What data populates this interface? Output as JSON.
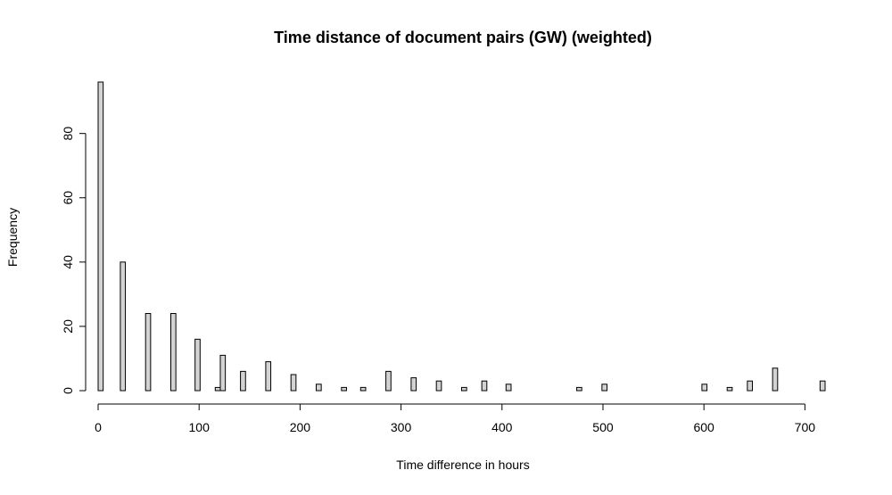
{
  "chart_data": {
    "type": "bar",
    "title": "Time distance of document pairs (GW) (weighted)",
    "xlabel": "Time difference in hours",
    "ylabel": "Frequency",
    "xlim": [
      0,
      720
    ],
    "ylim": [
      0,
      96
    ],
    "x_ticks": [
      0,
      100,
      200,
      300,
      400,
      500,
      600,
      700
    ],
    "y_ticks": [
      0,
      20,
      40,
      60,
      80
    ],
    "grid": false,
    "bin_width": 5,
    "bins": [
      {
        "x": 0,
        "value": 96
      },
      {
        "x": 22,
        "value": 40
      },
      {
        "x": 47,
        "value": 24
      },
      {
        "x": 72,
        "value": 24
      },
      {
        "x": 96,
        "value": 16
      },
      {
        "x": 116,
        "value": 1
      },
      {
        "x": 121,
        "value": 11
      },
      {
        "x": 141,
        "value": 6
      },
      {
        "x": 166,
        "value": 9
      },
      {
        "x": 191,
        "value": 5
      },
      {
        "x": 216,
        "value": 2
      },
      {
        "x": 241,
        "value": 1
      },
      {
        "x": 260,
        "value": 1
      },
      {
        "x": 285,
        "value": 6
      },
      {
        "x": 310,
        "value": 4
      },
      {
        "x": 335,
        "value": 3
      },
      {
        "x": 360,
        "value": 1
      },
      {
        "x": 380,
        "value": 3
      },
      {
        "x": 404,
        "value": 2
      },
      {
        "x": 474,
        "value": 1
      },
      {
        "x": 499,
        "value": 2
      },
      {
        "x": 598,
        "value": 2
      },
      {
        "x": 623,
        "value": 1
      },
      {
        "x": 643,
        "value": 3
      },
      {
        "x": 668,
        "value": 7
      },
      {
        "x": 715,
        "value": 3
      }
    ]
  }
}
